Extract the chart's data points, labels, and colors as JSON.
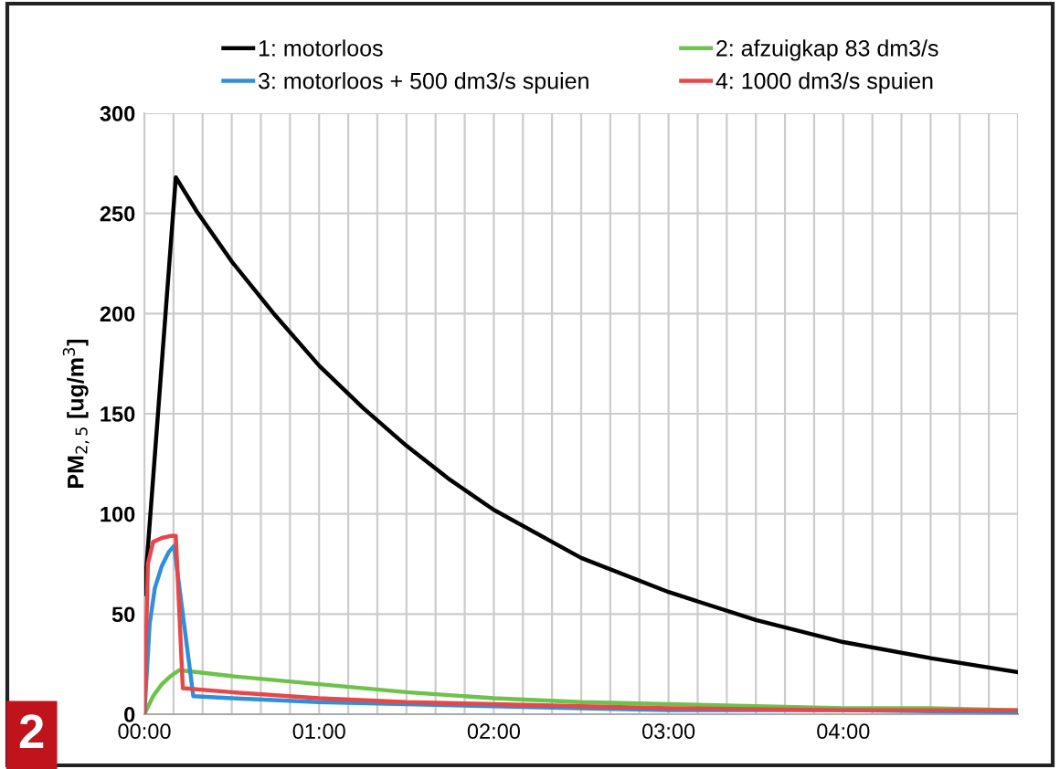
{
  "chart_data": {
    "type": "line",
    "ylabel": "PM$_{2,5}$ [ug/m$^{3}$]",
    "xlim": [
      0,
      5
    ],
    "ylim": [
      0,
      300
    ],
    "yticks": [
      0,
      50,
      100,
      150,
      200,
      250,
      300
    ],
    "xticks": [
      {
        "value": 0,
        "label": "00:00"
      },
      {
        "value": 0.1667,
        "label": null
      },
      {
        "value": 0.3333,
        "label": null
      },
      {
        "value": 0.5,
        "label": null
      },
      {
        "value": 0.6667,
        "label": null
      },
      {
        "value": 0.8333,
        "label": null
      },
      {
        "value": 1,
        "label": "01:00"
      },
      {
        "value": 1.1667,
        "label": null
      },
      {
        "value": 1.3333,
        "label": null
      },
      {
        "value": 1.5,
        "label": null
      },
      {
        "value": 1.6667,
        "label": null
      },
      {
        "value": 1.8333,
        "label": null
      },
      {
        "value": 2,
        "label": "02:00"
      },
      {
        "value": 2.1667,
        "label": null
      },
      {
        "value": 2.3333,
        "label": null
      },
      {
        "value": 2.5,
        "label": null
      },
      {
        "value": 2.6667,
        "label": null
      },
      {
        "value": 2.8333,
        "label": null
      },
      {
        "value": 3,
        "label": "03:00"
      },
      {
        "value": 3.1667,
        "label": null
      },
      {
        "value": 3.3333,
        "label": null
      },
      {
        "value": 3.5,
        "label": null
      },
      {
        "value": 3.6667,
        "label": null
      },
      {
        "value": 3.8333,
        "label": null
      },
      {
        "value": 4,
        "label": "04:00"
      },
      {
        "value": 4.1667,
        "label": null
      },
      {
        "value": 4.3333,
        "label": null
      },
      {
        "value": 4.5,
        "label": null
      },
      {
        "value": 4.6667,
        "label": null
      },
      {
        "value": 4.8333,
        "label": null
      },
      {
        "value": 5,
        "label": null
      }
    ],
    "grid": true,
    "legend": "top",
    "marker": "none",
    "line_style": "solid",
    "series": [
      {
        "name": "1: motorloos",
        "color": "#000000",
        "x": [
          0,
          0.18,
          0.3,
          0.5,
          0.75,
          1,
          1.25,
          1.5,
          1.75,
          2,
          2.5,
          3,
          3.5,
          4,
          4.5,
          5
        ],
        "values": [
          60,
          268,
          251,
          226,
          199,
          174,
          153,
          134,
          117,
          102,
          78,
          61,
          47,
          36,
          28,
          21
        ]
      },
      {
        "name": "2: afzuigkap 83 dm3/s",
        "color": "#6cc24a",
        "x": [
          0,
          0.05,
          0.1,
          0.15,
          0.2,
          0.5,
          1,
          1.5,
          2,
          2.5,
          3,
          3.5,
          4,
          4.5,
          5
        ],
        "values": [
          0,
          9,
          15,
          19,
          22,
          19,
          15,
          11,
          8,
          6,
          5,
          4,
          3,
          3,
          2
        ]
      },
      {
        "name": "3: motorloos + 500 dm3/s spuien",
        "color": "#2f8fd8",
        "x": [
          0,
          0.03,
          0.06,
          0.1,
          0.14,
          0.17,
          0.28,
          0.5,
          1,
          1.5,
          2,
          2.5,
          3,
          4,
          5
        ],
        "values": [
          0,
          45,
          63,
          74,
          81,
          84,
          9,
          8,
          6,
          5,
          4,
          3,
          2,
          2,
          1
        ]
      },
      {
        "name": "4: 1000 dm3/s spuien",
        "color": "#e8474a",
        "x": [
          0,
          0.02,
          0.05,
          0.1,
          0.15,
          0.18,
          0.22,
          0.5,
          1,
          1.5,
          2,
          2.5,
          3,
          4,
          5
        ],
        "values": [
          0,
          75,
          86,
          88,
          89,
          89,
          13,
          11,
          8,
          6,
          5,
          4,
          3,
          2,
          2
        ]
      }
    ],
    "annotations": [
      "2"
    ]
  }
}
